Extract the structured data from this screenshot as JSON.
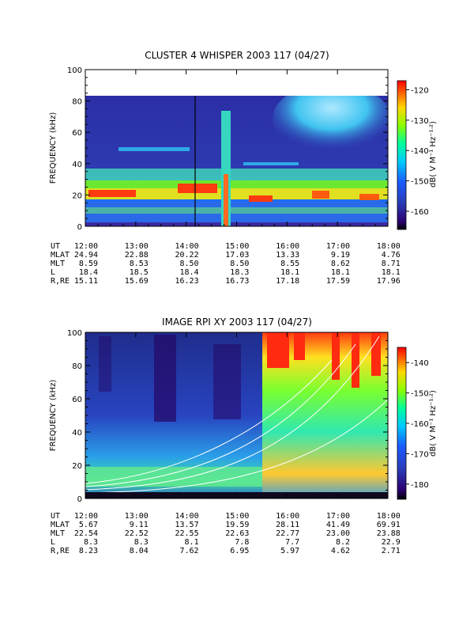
{
  "panels": [
    {
      "title": "CLUSTER 4 WHISPER 2003 117 (04/27)",
      "ylabel": "FREQUENCY (kHz)",
      "colorbar_label": "dB( V M⁻¹ Hz⁻¹ᐧ²)",
      "colorbar_ticks": [
        "-120",
        "-130",
        "-140",
        "-150",
        "-160"
      ],
      "y_ticks": [
        "0",
        "20",
        "40",
        "60",
        "80",
        "100"
      ],
      "ephemeris": {
        "labels": [
          "UT",
          "MLAT",
          "MLT",
          "L",
          "R,RE"
        ],
        "rows": [
          [
            "12:00",
            "13:00",
            "14:00",
            "15:00",
            "16:00",
            "17:00",
            "18:00"
          ],
          [
            "24.94",
            "22.88",
            "20.22",
            "17.03",
            "13.33",
            "9.19",
            "4.76"
          ],
          [
            "8.59",
            "8.53",
            "8.50",
            "8.50",
            "8.55",
            "8.62",
            "8.71"
          ],
          [
            "18.4",
            "18.5",
            "18.4",
            "18.3",
            "18.1",
            "18.1",
            "18.1"
          ],
          [
            "15.11",
            "15.69",
            "16.23",
            "16.73",
            "17.18",
            "17.59",
            "17.96"
          ]
        ]
      }
    },
    {
      "title": "IMAGE RPI XY 2003 117 (04/27)",
      "ylabel": "FREQUENCY (kHz)",
      "colorbar_label": "dB( V M⁻¹ Hz⁻¹ᐧ²)",
      "colorbar_ticks": [
        "-140",
        "-150",
        "-160",
        "-170",
        "-180"
      ],
      "y_ticks": [
        "0",
        "20",
        "40",
        "60",
        "80",
        "100"
      ],
      "ephemeris": {
        "labels": [
          "UT",
          "MLAT",
          "MLT",
          "L",
          "R,RE"
        ],
        "rows": [
          [
            "12:00",
            "13:00",
            "14:00",
            "15:00",
            "16:00",
            "17:00",
            "18:00"
          ],
          [
            "5.67",
            "9.11",
            "13.57",
            "19.59",
            "28.11",
            "41.49",
            "69.91"
          ],
          [
            "22.54",
            "22.52",
            "22.55",
            "22.63",
            "22.77",
            "23.00",
            "23.88"
          ],
          [
            "8.3",
            "8.3",
            "8.1",
            "7.8",
            "7.7",
            "8.2",
            "22.9"
          ],
          [
            "8.23",
            "8.04",
            "7.62",
            "6.95",
            "5.97",
            "4.62",
            "2.71"
          ]
        ]
      }
    }
  ],
  "chart_data": [
    {
      "type": "heatmap",
      "title": "CLUSTER 4 WHISPER 2003 117 (04/27)",
      "xlabel": "",
      "ylabel": "FREQUENCY (kHz)",
      "x_range_ut_hours": [
        12,
        18
      ],
      "ylim": [
        0,
        100
      ],
      "data_ylim": [
        0,
        80
      ],
      "color_range_db": [
        -166,
        -117
      ],
      "colorbar_ticks": [
        -120,
        -130,
        -140,
        -150,
        -160
      ],
      "features": {
        "band_low": {
          "f_min": 15,
          "f_max": 30,
          "level": "high"
        },
        "band_mid": {
          "f_center": 45,
          "level": "moderate"
        },
        "burst_ut": 14.5,
        "hiss_patch": {
          "ut": [
            15.8,
            17.3
          ],
          "f": [
            50,
            80
          ],
          "level": "moderate"
        }
      }
    },
    {
      "type": "heatmap",
      "title": "IMAGE RPI XY 2003 117 (04/27)",
      "xlabel": "",
      "ylabel": "FREQUENCY (kHz)",
      "x_range_ut_hours": [
        12,
        18
      ],
      "ylim": [
        0,
        100
      ],
      "color_range_db": [
        -185,
        -135
      ],
      "colorbar_ticks": [
        -140,
        -150,
        -160,
        -170,
        -180
      ],
      "features": {
        "quiet_region_ut": [
          12,
          15.6
        ],
        "intense_region_ut": [
          15.6,
          18
        ],
        "low_freq_band": {
          "f_max": 20,
          "level": "moderate"
        }
      }
    }
  ]
}
